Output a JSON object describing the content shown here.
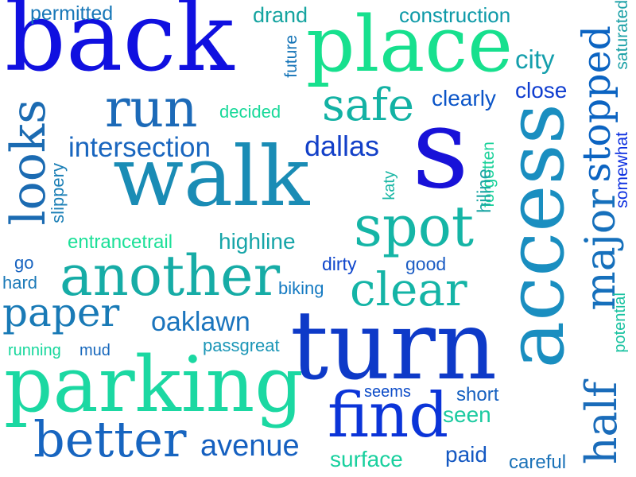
{
  "words": [
    {
      "text": "back",
      "color": "#1010e0"
    },
    {
      "text": "place",
      "color": "#17e08e"
    },
    {
      "text": "permitted",
      "color": "#1878b8"
    },
    {
      "text": "drand",
      "color": "#16a4a0"
    },
    {
      "text": "construction",
      "color": "#0e9aa8"
    },
    {
      "text": "future",
      "color": "#1574b7"
    },
    {
      "text": "city",
      "color": "#149fac"
    },
    {
      "text": "stopped",
      "color": "#0c64c2"
    },
    {
      "text": "saturated",
      "color": "#1ba0a6"
    },
    {
      "text": "run",
      "color": "#1c6ab8"
    },
    {
      "text": "decided",
      "color": "#19d99a"
    },
    {
      "text": "safe",
      "color": "#13b2a4"
    },
    {
      "text": "clearly",
      "color": "#0b55c8"
    },
    {
      "text": "close",
      "color": "#0f3dd0"
    },
    {
      "text": "looks",
      "color": "#1b6bb2"
    },
    {
      "text": "intersection",
      "color": "#1966bf"
    },
    {
      "text": "walk",
      "color": "#1a8cb5"
    },
    {
      "text": "dallas",
      "color": "#1340c8"
    },
    {
      "text": "s",
      "color": "#1812d8"
    },
    {
      "text": "forgotten",
      "color": "#1bd29a"
    },
    {
      "text": "access",
      "color": "#1a8ec0"
    },
    {
      "text": "somewhat",
      "color": "#0c2fe0"
    },
    {
      "text": "slippery",
      "color": "#1b7fb6"
    },
    {
      "text": "katy",
      "color": "#18b6a4"
    },
    {
      "text": "hiline",
      "color": "#1ca6a4"
    },
    {
      "text": "spot",
      "color": "#15b5a6"
    },
    {
      "text": "major",
      "color": "#1670bc"
    },
    {
      "text": "entrancetrail",
      "color": "#1ce098"
    },
    {
      "text": "highline",
      "color": "#16a5a8"
    },
    {
      "text": "go",
      "color": "#1964c0"
    },
    {
      "text": "dirty",
      "color": "#0f46cc"
    },
    {
      "text": "good",
      "color": "#1c5dc4"
    },
    {
      "text": "another",
      "color": "#16aca6"
    },
    {
      "text": "clear",
      "color": "#14b4a6"
    },
    {
      "text": "hard",
      "color": "#1b7ab8"
    },
    {
      "text": "biking",
      "color": "#147ac2"
    },
    {
      "text": "potential",
      "color": "#19c2a0"
    },
    {
      "text": "paper",
      "color": "#197ab6"
    },
    {
      "text": "oaklawn",
      "color": "#1a74bd"
    },
    {
      "text": "turn",
      "color": "#0e3ac8"
    },
    {
      "text": "half",
      "color": "#1a6cba"
    },
    {
      "text": "running",
      "color": "#17d79c"
    },
    {
      "text": "mud",
      "color": "#1868bc"
    },
    {
      "text": "passgreat",
      "color": "#1995b6"
    },
    {
      "text": "parking",
      "color": "#1bd8a2"
    },
    {
      "text": "seems",
      "color": "#0d4cc8"
    },
    {
      "text": "short",
      "color": "#1560c0"
    },
    {
      "text": "find",
      "color": "#0b34d8"
    },
    {
      "text": "seen",
      "color": "#1bcaa0"
    },
    {
      "text": "better",
      "color": "#1765c0"
    },
    {
      "text": "avenue",
      "color": "#1560c0"
    },
    {
      "text": "surface",
      "color": "#19d09e"
    },
    {
      "text": "paid",
      "color": "#1458c2"
    },
    {
      "text": "careful",
      "color": "#1a72b8"
    }
  ]
}
